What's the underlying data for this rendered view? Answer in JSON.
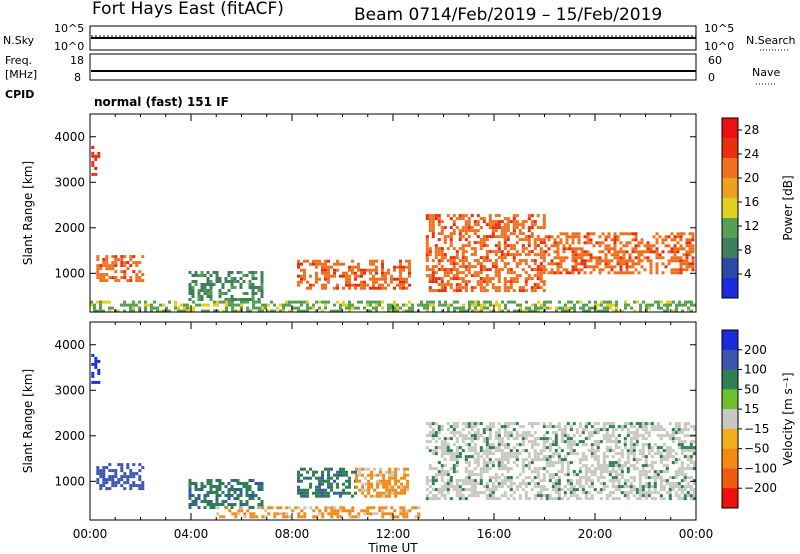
{
  "header": {
    "station": "Fort Hays East (fitACF)",
    "beam": "Beam 07",
    "date_range": "14/Feb/2019 – 15/Feb/2019"
  },
  "mode_label": "normal (fast) 151 IF",
  "strip_labels": {
    "nsky": "N.Sky",
    "nsky_ticks": [
      "10^5",
      "10^0"
    ],
    "nsearch": "N.Search",
    "nsearch_ticks": [
      "10^5",
      "10^0"
    ],
    "freq_line1": "Freq.",
    "freq_line2": "[MHz]",
    "freq_ticks": [
      "18",
      "8"
    ],
    "cpid": "CPID",
    "nave": "Nave",
    "nave_ticks": [
      "60",
      "0"
    ]
  },
  "colors": {
    "power": [
      "#1a2bdc",
      "#2a4aa6",
      "#3f7f60",
      "#56a055",
      "#e0d020",
      "#f0a020",
      "#f07020",
      "#e83010",
      "#ee1111"
    ],
    "velocity": [
      "#1a2bdc",
      "#3a56b0",
      "#2f7f52",
      "#6cc030",
      "#c8c8c0",
      "#f2b020",
      "#f08a10",
      "#f05a10",
      "#ee1111"
    ]
  },
  "chart_data": [
    {
      "type": "heatmap",
      "quantity": "Power",
      "ylabel": "Slant Range [km]",
      "y_ticks": [
        "1000",
        "2000",
        "3000",
        "4000"
      ],
      "ylim": [
        150,
        4500
      ],
      "colorbar_label": "Power [dB]",
      "colorbar_ticks": [
        "4",
        "8",
        "12",
        "16",
        "20",
        "24",
        "28"
      ],
      "colorbar_range": [
        0,
        30
      ],
      "echo_regions": [
        {
          "t_start_h": 0.05,
          "t_end_h": 0.35,
          "range_low_km": 3200,
          "range_high_km": 3800,
          "value": 24
        },
        {
          "t_start_h": 0.25,
          "t_end_h": 2.1,
          "range_low_km": 850,
          "range_high_km": 1400,
          "value": 22
        },
        {
          "t_start_h": 3.9,
          "t_end_h": 6.8,
          "range_low_km": 400,
          "range_high_km": 1050,
          "value": 8
        },
        {
          "t_start_h": 8.2,
          "t_end_h": 12.6,
          "range_low_km": 700,
          "range_high_km": 1300,
          "value": 20
        },
        {
          "t_start_h": 13.3,
          "t_end_h": 18.0,
          "range_low_km": 600,
          "range_high_km": 2300,
          "value": 22
        },
        {
          "t_start_h": 18.0,
          "t_end_h": 23.9,
          "range_low_km": 1000,
          "range_high_km": 1900,
          "value": 20
        },
        {
          "t_start_h": 0.0,
          "t_end_h": 24.0,
          "range_low_km": 200,
          "range_high_km": 400,
          "value": 12
        }
      ]
    },
    {
      "type": "heatmap",
      "quantity": "Velocity",
      "ylabel": "Slant Range [km]",
      "y_ticks": [
        "1000",
        "2000",
        "3000",
        "4000"
      ],
      "ylim": [
        150,
        4500
      ],
      "colorbar_label": "Velocity [m s⁻¹]",
      "colorbar_ticks": [
        "200",
        "100",
        "50",
        "15",
        "−15",
        "−50",
        "−100",
        "−200"
      ],
      "echo_regions": [
        {
          "t_start_h": 0.05,
          "t_end_h": 0.35,
          "range_low_km": 3200,
          "range_high_km": 3800,
          "value": 200
        },
        {
          "t_start_h": 0.25,
          "t_end_h": 2.1,
          "range_low_km": 850,
          "range_high_km": 1400,
          "value": 75
        },
        {
          "t_start_h": 3.9,
          "t_end_h": 6.8,
          "range_low_km": 400,
          "range_high_km": 1050,
          "value": 60
        },
        {
          "t_start_h": 8.2,
          "t_end_h": 10.5,
          "range_low_km": 700,
          "range_high_km": 1300,
          "value": 60
        },
        {
          "t_start_h": 10.5,
          "t_end_h": 12.6,
          "range_low_km": 700,
          "range_high_km": 1300,
          "value": -40
        },
        {
          "t_start_h": 5.0,
          "t_end_h": 13.0,
          "range_low_km": 200,
          "range_high_km": 450,
          "value": -40
        },
        {
          "t_start_h": 13.3,
          "t_end_h": 23.9,
          "range_low_km": 600,
          "range_high_km": 2300,
          "value": 0
        }
      ]
    }
  ],
  "x_axis": {
    "label": "Time UT",
    "ticks": [
      "00:00",
      "04:00",
      "08:00",
      "12:00",
      "16:00",
      "20:00",
      "00:00"
    ]
  }
}
